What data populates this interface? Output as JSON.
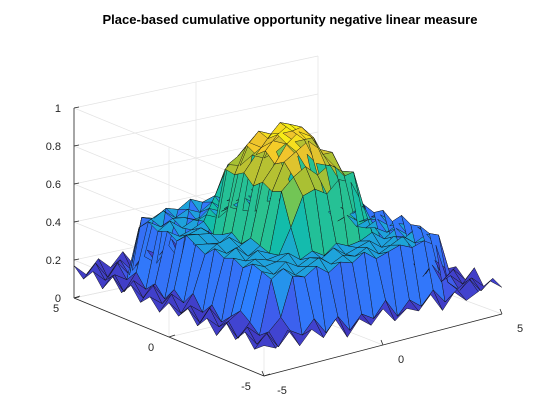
{
  "chart_data": {
    "type": "surface3d",
    "title": "Place-based cumulative opportunity negative linear measure",
    "xlabel": "",
    "ylabel": "",
    "zlabel": "",
    "xlim": [
      -5,
      5
    ],
    "ylim": [
      -5,
      5
    ],
    "zlim": [
      0,
      1
    ],
    "x_ticks": [
      -5,
      0,
      5
    ],
    "y_ticks": [
      -5,
      0,
      5
    ],
    "z_ticks": [
      0,
      0.2,
      0.4,
      0.6,
      0.8,
      1
    ],
    "x_tick_labels": [
      "-5",
      "0",
      "5"
    ],
    "y_tick_labels": [
      "-5",
      "0",
      "5"
    ],
    "z_tick_labels": [
      "0",
      "0.2",
      "0.4",
      "0.6",
      "0.8",
      "1"
    ],
    "grid": true,
    "colormap": "parula",
    "colormap_stops": [
      "#3e26a8",
      "#4353e6",
      "#2d80ff",
      "#1ea2dc",
      "#13bda8",
      "#4ac86f",
      "#a7c033",
      "#f3c52c",
      "#f9fb0e"
    ],
    "edge_color": "#111111",
    "x": [
      -5,
      -4.5,
      -4,
      -3.5,
      -3,
      -2.5,
      -2,
      -1.5,
      -1,
      -0.5,
      0,
      0.5,
      1,
      1.5,
      2,
      2.5,
      3,
      3.5,
      4,
      4.5,
      5
    ],
    "y": [
      -5,
      -4.5,
      -4,
      -3.5,
      -3,
      -2.5,
      -2,
      -1.5,
      -1,
      -0.5,
      0,
      0.5,
      1,
      1.5,
      2,
      2.5,
      3,
      3.5,
      4,
      4.5,
      5
    ],
    "z": [
      [
        0.16,
        0.13,
        0.21,
        0.11,
        0.18,
        0.12,
        0.2,
        0.09,
        0.17,
        0.12,
        0.19,
        0.11,
        0.16,
        0.13,
        0.2,
        0.1,
        0.18,
        0.12,
        0.15,
        0.19,
        0.14
      ],
      [
        0.12,
        0.19,
        0.1,
        0.17,
        0.13,
        0.2,
        0.11,
        0.18,
        0.09,
        0.16,
        0.12,
        0.2,
        0.1,
        0.17,
        0.12,
        0.19,
        0.11,
        0.16,
        0.2,
        0.12,
        0.17
      ],
      [
        0.19,
        0.11,
        0.16,
        0.22,
        0.42,
        0.4,
        0.44,
        0.39,
        0.43,
        0.41,
        0.45,
        0.4,
        0.42,
        0.44,
        0.41,
        0.43,
        0.39,
        0.18,
        0.12,
        0.17,
        0.11
      ],
      [
        0.13,
        0.18,
        0.12,
        0.4,
        0.44,
        0.39,
        0.42,
        0.45,
        0.4,
        0.43,
        0.41,
        0.44,
        0.39,
        0.42,
        0.45,
        0.4,
        0.43,
        0.41,
        0.18,
        0.12,
        0.19
      ],
      [
        0.2,
        0.1,
        0.17,
        0.42,
        0.39,
        0.44,
        0.4,
        0.43,
        0.41,
        0.45,
        0.4,
        0.42,
        0.44,
        0.39,
        0.43,
        0.41,
        0.45,
        0.4,
        0.13,
        0.18,
        0.11
      ],
      [
        0.11,
        0.17,
        0.21,
        0.44,
        0.41,
        0.42,
        0.45,
        0.4,
        0.43,
        0.39,
        0.44,
        0.41,
        0.42,
        0.45,
        0.4,
        0.44,
        0.39,
        0.42,
        0.2,
        0.11,
        0.16
      ],
      [
        0.18,
        0.12,
        0.16,
        0.4,
        0.43,
        0.41,
        0.42,
        0.55,
        0.7,
        0.72,
        0.68,
        0.74,
        0.71,
        0.58,
        0.44,
        0.4,
        0.43,
        0.41,
        0.12,
        0.19,
        0.13
      ],
      [
        0.12,
        0.2,
        0.11,
        0.43,
        0.4,
        0.44,
        0.41,
        0.72,
        0.78,
        0.82,
        0.76,
        0.8,
        0.75,
        0.73,
        0.42,
        0.45,
        0.4,
        0.44,
        0.17,
        0.1,
        0.18
      ],
      [
        0.19,
        0.1,
        0.18,
        0.41,
        0.45,
        0.39,
        0.43,
        0.7,
        0.84,
        0.88,
        0.92,
        0.86,
        0.83,
        0.69,
        0.41,
        0.43,
        0.44,
        0.39,
        0.14,
        0.18,
        0.12
      ],
      [
        0.13,
        0.17,
        0.12,
        0.44,
        0.4,
        0.42,
        0.45,
        0.73,
        0.81,
        0.9,
        0.95,
        0.91,
        0.8,
        0.72,
        0.45,
        0.4,
        0.41,
        0.43,
        0.19,
        0.11,
        0.17
      ],
      [
        0.18,
        0.11,
        0.2,
        0.39,
        0.43,
        0.45,
        0.4,
        0.69,
        0.86,
        0.93,
        0.97,
        0.94,
        0.87,
        0.71,
        0.4,
        0.42,
        0.45,
        0.4,
        0.12,
        0.18,
        0.14
      ],
      [
        0.11,
        0.19,
        0.13,
        0.42,
        0.41,
        0.4,
        0.44,
        0.74,
        0.82,
        0.89,
        0.96,
        0.9,
        0.84,
        0.7,
        0.43,
        0.44,
        0.39,
        0.42,
        0.17,
        0.12,
        0.2
      ],
      [
        0.17,
        0.12,
        0.18,
        0.45,
        0.44,
        0.43,
        0.41,
        0.71,
        0.85,
        0.91,
        0.88,
        0.87,
        0.81,
        0.73,
        0.42,
        0.39,
        0.44,
        0.45,
        0.11,
        0.19,
        0.13
      ],
      [
        0.12,
        0.2,
        0.11,
        0.4,
        0.42,
        0.44,
        0.39,
        0.72,
        0.77,
        0.83,
        0.79,
        0.81,
        0.78,
        0.7,
        0.45,
        0.43,
        0.4,
        0.41,
        0.18,
        0.12,
        0.17
      ],
      [
        0.19,
        0.11,
        0.17,
        0.43,
        0.39,
        0.41,
        0.44,
        0.57,
        0.71,
        0.69,
        0.73,
        0.7,
        0.72,
        0.56,
        0.4,
        0.44,
        0.42,
        0.43,
        0.13,
        0.18,
        0.11
      ],
      [
        0.13,
        0.18,
        0.12,
        0.41,
        0.45,
        0.4,
        0.43,
        0.44,
        0.41,
        0.45,
        0.42,
        0.4,
        0.44,
        0.43,
        0.41,
        0.39,
        0.45,
        0.4,
        0.2,
        0.11,
        0.19
      ],
      [
        0.2,
        0.1,
        0.19,
        0.44,
        0.4,
        0.43,
        0.42,
        0.39,
        0.44,
        0.41,
        0.43,
        0.45,
        0.4,
        0.42,
        0.44,
        0.41,
        0.4,
        0.44,
        0.12,
        0.17,
        0.12
      ],
      [
        0.11,
        0.17,
        0.13,
        0.39,
        0.42,
        0.45,
        0.4,
        0.43,
        0.4,
        0.44,
        0.39,
        0.42,
        0.43,
        0.41,
        0.45,
        0.4,
        0.43,
        0.41,
        0.18,
        0.12,
        0.18
      ],
      [
        0.18,
        0.12,
        0.2,
        0.12,
        0.41,
        0.39,
        0.43,
        0.41,
        0.45,
        0.42,
        0.44,
        0.4,
        0.41,
        0.43,
        0.4,
        0.42,
        0.44,
        0.13,
        0.11,
        0.19,
        0.11
      ],
      [
        0.12,
        0.19,
        0.1,
        0.18,
        0.11,
        0.17,
        0.12,
        0.2,
        0.1,
        0.18,
        0.12,
        0.19,
        0.11,
        0.17,
        0.13,
        0.18,
        0.12,
        0.19,
        0.17,
        0.12,
        0.16
      ],
      [
        0.17,
        0.11,
        0.18,
        0.12,
        0.19,
        0.1,
        0.17,
        0.13,
        0.2,
        0.11,
        0.16,
        0.12,
        0.19,
        0.1,
        0.18,
        0.12,
        0.17,
        0.11,
        0.18,
        0.14,
        0.12
      ]
    ]
  }
}
